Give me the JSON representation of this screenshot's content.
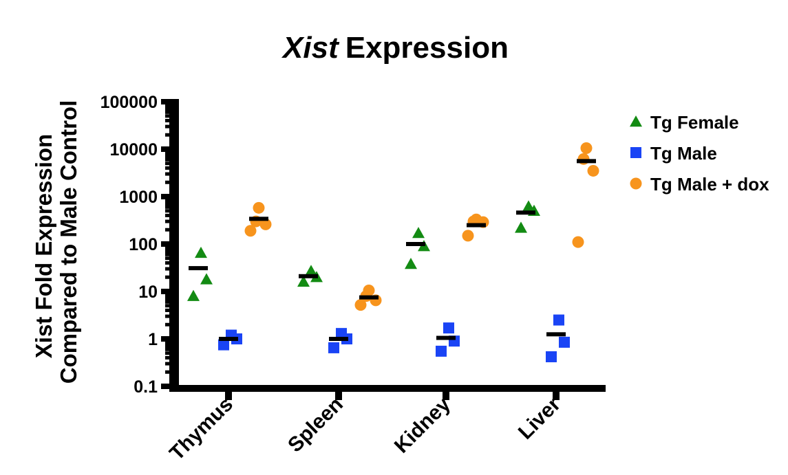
{
  "chart_data": {
    "type": "scatter",
    "title_italic": "Xist",
    "title_rest": "Expression",
    "ylabel_line1": "Xist Fold Expression",
    "ylabel_line2": "Compared to Male Control",
    "xlabel": "",
    "yscale": "log",
    "ylim": [
      0.1,
      100000
    ],
    "yticks": [
      0.1,
      1,
      10,
      100,
      1000,
      10000,
      100000
    ],
    "ytick_labels": [
      "0.1",
      "1",
      "10",
      "100",
      "1000",
      "10000",
      "100000"
    ],
    "categories": [
      "Thymus",
      "Spleen",
      "Kidney",
      "Liver"
    ],
    "legend_position": "right",
    "grid": false,
    "series": [
      {
        "name": "Tg Female",
        "marker": "triangle",
        "color": "#138b13",
        "points": [
          [
            65,
            18,
            8
          ],
          [
            27,
            20,
            16
          ],
          [
            170,
            90,
            38
          ],
          [
            620,
            500,
            220
          ]
        ],
        "medians": [
          31,
          21,
          100,
          460
        ]
      },
      {
        "name": "Tg Male",
        "marker": "square",
        "color": "#1a44f5",
        "points": [
          [
            1.2,
            1.0,
            0.75
          ],
          [
            1.3,
            1.0,
            0.65
          ],
          [
            1.7,
            0.9,
            0.55
          ],
          [
            2.5,
            0.85,
            0.42
          ]
        ],
        "medians": [
          1.0,
          1.0,
          1.05,
          1.25
        ]
      },
      {
        "name": "Tg Male + dox",
        "marker": "circle",
        "color": "#f7941d",
        "points": [
          [
            580,
            300,
            260,
            190
          ],
          [
            10.5,
            8.0,
            6.5,
            5.2
          ],
          [
            330,
            300,
            290,
            150
          ],
          [
            10500,
            6200,
            3500,
            110
          ]
        ],
        "medians": [
          340,
          7.5,
          250,
          5600
        ]
      }
    ]
  }
}
